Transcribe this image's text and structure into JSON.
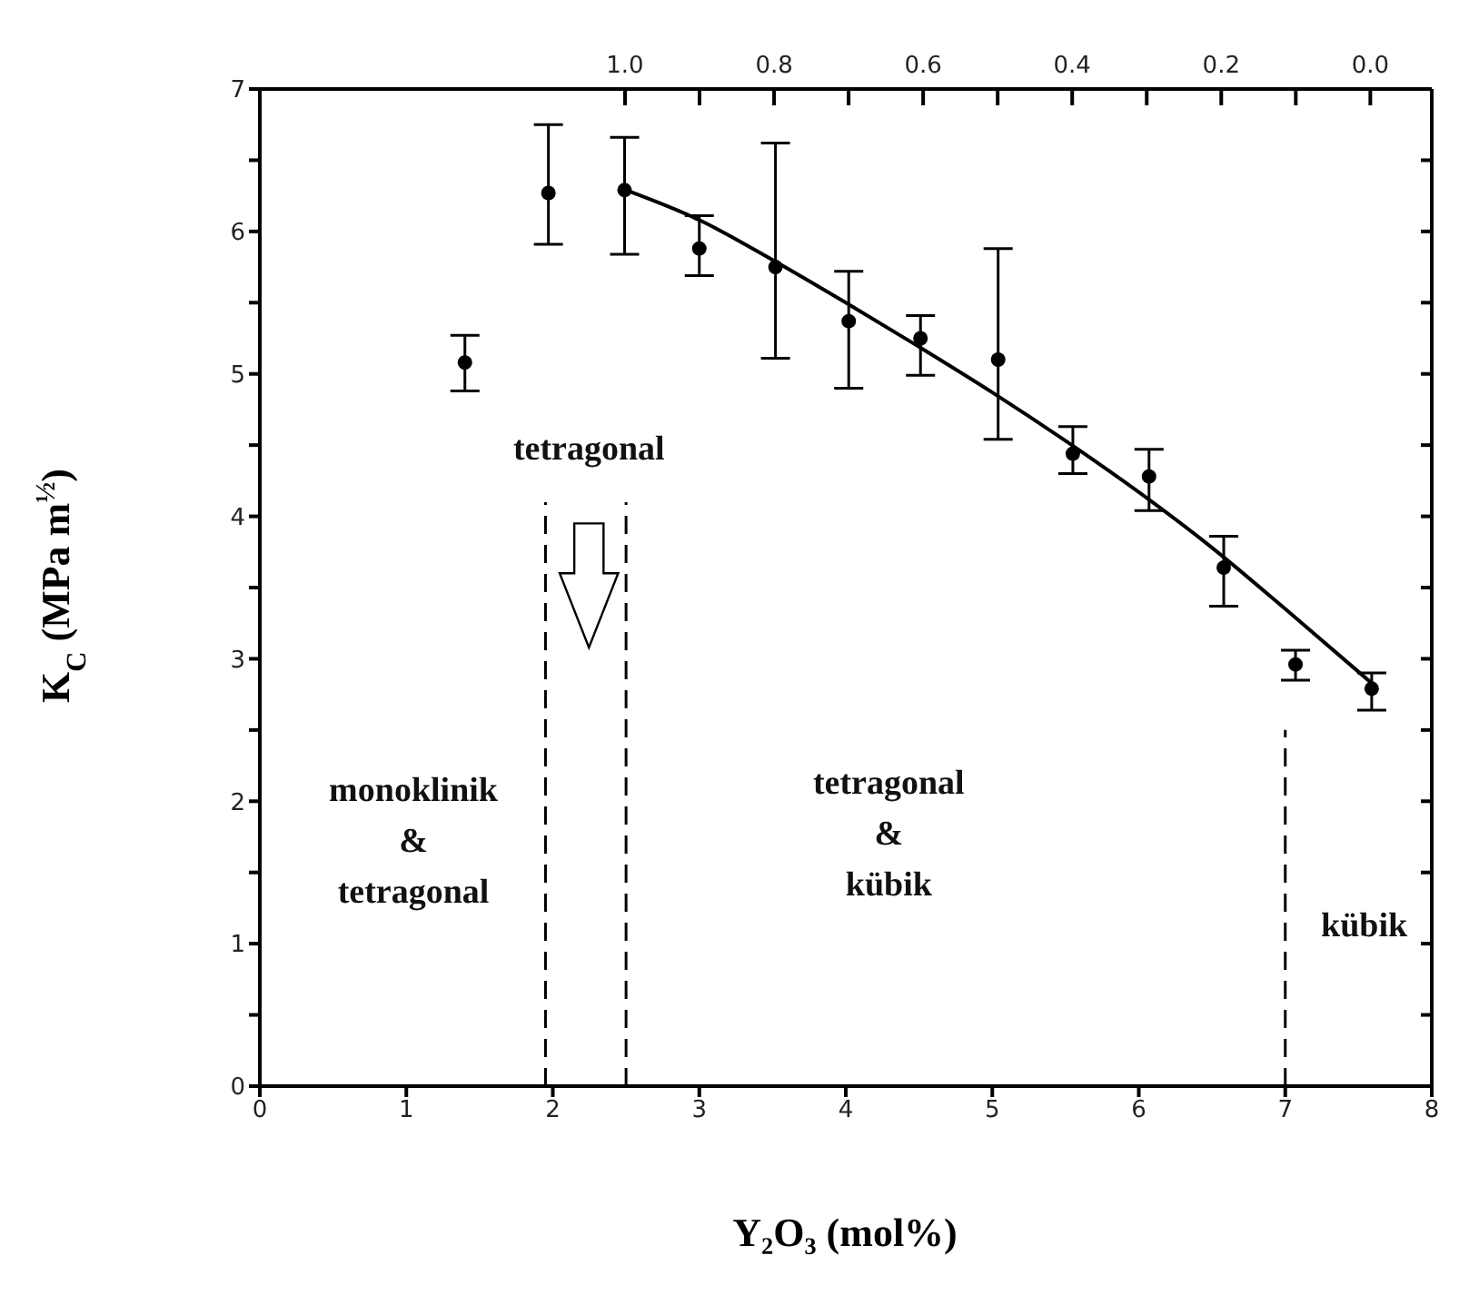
{
  "chart_data": {
    "type": "scatter",
    "xlabel": "Y₂O₃   (mol%)",
    "ylabel": "K$_{C}$ (MPa m$^{½}$)",
    "xlim": [
      0,
      8
    ],
    "xticks": [
      0,
      1,
      2,
      3,
      4,
      5,
      6,
      7,
      8
    ],
    "ylim": [
      0,
      7
    ],
    "yticks": [
      0,
      {
        "value": 0.5,
        "label": null
      },
      1,
      {
        "value": 1.5,
        "label": null
      },
      2,
      {
        "value": 2.5,
        "label": null
      },
      3,
      {
        "value": 3.5,
        "label": null
      },
      4,
      {
        "value": 4.5,
        "label": null
      },
      5,
      {
        "value": 5.5,
        "label": null
      },
      6,
      {
        "value": 6.5,
        "label": null
      },
      7
    ],
    "x2lim": [
      1.49,
      -0.08
    ],
    "x2ticks": [
      {
        "value": 1.0,
        "label": "1.0"
      },
      {
        "value": 0.9,
        "label": null
      },
      0.8,
      {
        "value": 0.7,
        "label": null
      },
      0.6,
      {
        "value": 0.5,
        "label": null
      },
      0.4,
      {
        "value": 0.3,
        "label": null
      },
      0.2,
      {
        "value": 0.1,
        "label": null
      },
      {
        "value": 0.0,
        "label": "0.0"
      }
    ],
    "series": [
      {
        "type": "scatter",
        "color": "#000000",
        "marker": "circle",
        "x": [
          1.4,
          1.97,
          2.49,
          3.0,
          3.52,
          4.02,
          4.51,
          5.04,
          5.55,
          6.07,
          6.58,
          7.07,
          7.59
        ],
        "values": [
          5.08,
          6.27,
          6.29,
          5.88,
          5.75,
          5.37,
          5.25,
          5.1,
          4.44,
          4.28,
          3.64,
          2.96,
          2.79
        ],
        "errors": [
          [
            4.88,
            5.27
          ],
          [
            5.91,
            6.75
          ],
          [
            5.84,
            6.66
          ],
          [
            5.69,
            6.11
          ],
          [
            5.11,
            6.62
          ],
          [
            4.9,
            5.72
          ],
          [
            4.99,
            5.41
          ],
          [
            4.54,
            5.88
          ],
          [
            4.3,
            4.63
          ],
          [
            4.04,
            4.47
          ],
          [
            3.37,
            3.86
          ],
          [
            2.85,
            3.06
          ],
          [
            2.64,
            2.9
          ]
        ]
      },
      {
        "type": "line",
        "color": "#000000",
        "marker": "none",
        "line_style": "solid",
        "x": [
          2.5,
          3.0,
          3.5,
          4.0,
          4.5,
          5.0,
          5.5,
          6.0,
          6.5,
          7.0,
          7.6
        ],
        "values": [
          6.29,
          6.08,
          5.8,
          5.5,
          5.19,
          4.87,
          4.53,
          4.17,
          3.78,
          3.35,
          2.82
        ]
      }
    ],
    "ref_lines": [
      {
        "axis": "x",
        "value": 1.95,
        "line_style": "dashed",
        "color": "#000000"
      },
      {
        "axis": "x",
        "value": 2.5,
        "line_style": "dashed",
        "color": "#000000"
      },
      {
        "axis": "x",
        "value": 7.0,
        "line_style": "dashed",
        "color": "#000000"
      }
    ],
    "annotations": [
      "tetragonal",
      "monoklinik\n&\ntetragonal",
      "tetragonal\n&\nkübik",
      "kübik"
    ],
    "grid": false,
    "legend": false
  }
}
